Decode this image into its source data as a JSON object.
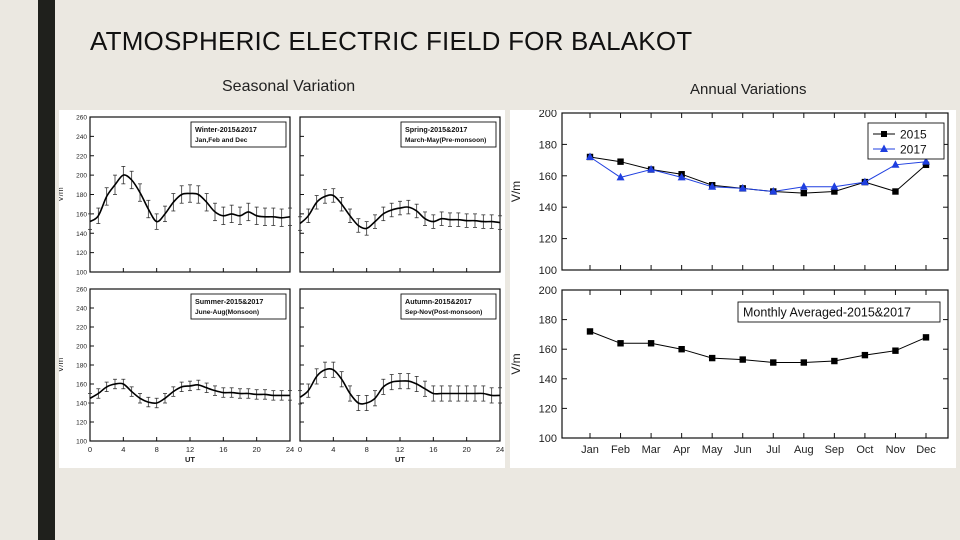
{
  "slide": {
    "title": "ATMOSPHERIC ELECTRIC FIELD FOR BALAKOT",
    "seasonal_heading": "Seasonal Variation",
    "annual_heading": "Annual Variations"
  },
  "colors": {
    "background": "#ebe8e1",
    "accent_bar": "#1f201c",
    "series_2015": "#000000",
    "series_2017": "#1f3fe0"
  },
  "chart_data": [
    {
      "type": "line",
      "panel": "winter",
      "legend": [
        "Winter-2015&2017",
        "Jan,Feb and Dec"
      ],
      "x": [
        0,
        1,
        2,
        3,
        4,
        5,
        6,
        7,
        8,
        9,
        10,
        11,
        12,
        13,
        14,
        15,
        16,
        17,
        18,
        19,
        20,
        21,
        22,
        23,
        24
      ],
      "y": [
        152,
        158,
        178,
        190,
        200,
        195,
        182,
        165,
        152,
        160,
        172,
        180,
        181,
        180,
        172,
        162,
        158,
        160,
        158,
        162,
        158,
        157,
        157,
        156,
        157
      ],
      "err": [
        8,
        8,
        9,
        10,
        9,
        9,
        9,
        9,
        8,
        8,
        9,
        9,
        9,
        9,
        9,
        9,
        9,
        9,
        9,
        9,
        9,
        9,
        9,
        9,
        9
      ],
      "xlim": [
        0,
        24
      ],
      "ylim": [
        100,
        260
      ],
      "xticks": [
        0,
        4,
        8,
        12,
        16,
        20,
        24
      ],
      "yticks": [
        100,
        120,
        140,
        160,
        180,
        200,
        220,
        240,
        260
      ],
      "ylabel": "V/m",
      "xlabel": ""
    },
    {
      "type": "line",
      "panel": "spring",
      "legend": [
        "Spring-2015&2017",
        "March-May(Pre-monsoon)"
      ],
      "x": [
        0,
        1,
        2,
        3,
        4,
        5,
        6,
        7,
        8,
        9,
        10,
        11,
        12,
        13,
        14,
        15,
        16,
        17,
        18,
        19,
        20,
        21,
        22,
        23,
        24
      ],
      "y": [
        150,
        158,
        172,
        178,
        179,
        170,
        158,
        148,
        145,
        152,
        160,
        164,
        166,
        167,
        163,
        155,
        152,
        155,
        154,
        154,
        153,
        153,
        152,
        152,
        151
      ],
      "err": [
        7,
        7,
        7,
        7,
        7,
        7,
        7,
        7,
        7,
        7,
        7,
        7,
        7,
        7,
        7,
        7,
        7,
        7,
        7,
        7,
        7,
        7,
        7,
        7,
        7
      ],
      "xlim": [
        0,
        24
      ],
      "ylim": [
        100,
        260
      ],
      "xticks": [
        0,
        4,
        8,
        12,
        16,
        20,
        24
      ],
      "yticks": [],
      "ylabel": "",
      "xlabel": ""
    },
    {
      "type": "line",
      "panel": "summer",
      "legend": [
        "Summer-2015&2017",
        "June-Aug(Monsoon)"
      ],
      "x": [
        0,
        1,
        2,
        3,
        4,
        5,
        6,
        7,
        8,
        9,
        10,
        11,
        12,
        13,
        14,
        15,
        16,
        17,
        18,
        19,
        20,
        21,
        22,
        23,
        24
      ],
      "y": [
        145,
        150,
        157,
        160,
        160,
        152,
        145,
        141,
        140,
        145,
        152,
        157,
        158,
        159,
        156,
        153,
        151,
        151,
        150,
        150,
        149,
        149,
        148,
        148,
        148
      ],
      "err": [
        5,
        5,
        5,
        5,
        5,
        5,
        5,
        5,
        5,
        5,
        5,
        5,
        5,
        5,
        5,
        5,
        5,
        5,
        5,
        5,
        5,
        5,
        5,
        5,
        5
      ],
      "xlim": [
        0,
        24
      ],
      "ylim": [
        100,
        260
      ],
      "xticks": [
        0,
        4,
        8,
        12,
        16,
        20,
        24
      ],
      "yticks": [
        100,
        120,
        140,
        160,
        180,
        200,
        220,
        240,
        260
      ],
      "ylabel": "V/m",
      "xlabel": "UT"
    },
    {
      "type": "line",
      "panel": "autumn",
      "legend": [
        "Autumn-2015&2017",
        "Sep-Nov(Post-monsoon)"
      ],
      "x": [
        0,
        1,
        2,
        3,
        4,
        5,
        6,
        7,
        8,
        9,
        10,
        11,
        12,
        13,
        14,
        15,
        16,
        17,
        18,
        19,
        20,
        21,
        22,
        23,
        24
      ],
      "y": [
        146,
        153,
        168,
        175,
        175,
        165,
        150,
        140,
        140,
        145,
        157,
        162,
        163,
        163,
        160,
        155,
        150,
        150,
        150,
        150,
        150,
        150,
        150,
        148,
        148
      ],
      "err": [
        7,
        7,
        8,
        8,
        8,
        8,
        8,
        8,
        8,
        8,
        8,
        8,
        8,
        8,
        8,
        8,
        8,
        8,
        8,
        8,
        8,
        8,
        8,
        8,
        8
      ],
      "xlim": [
        0,
        24
      ],
      "ylim": [
        100,
        260
      ],
      "xticks": [
        0,
        4,
        8,
        12,
        16,
        20,
        24
      ],
      "yticks": [],
      "ylabel": "",
      "xlabel": "UT"
    },
    {
      "type": "line",
      "panel": "annual-by-year",
      "categories": [
        "Jan",
        "Feb",
        "Mar",
        "Apr",
        "May",
        "Jun",
        "Jul",
        "Aug",
        "Sep",
        "Oct",
        "Nov",
        "Dec"
      ],
      "series": [
        {
          "name": "2015",
          "values": [
            172,
            169,
            164,
            161,
            154,
            152,
            150,
            149,
            150,
            156,
            150,
            167
          ]
        },
        {
          "name": "2017",
          "values": [
            172,
            159,
            164,
            159,
            153,
            152,
            150,
            153,
            153,
            156,
            167,
            169
          ]
        }
      ],
      "ylim": [
        100,
        200
      ],
      "yticks": [
        100,
        120,
        140,
        160,
        180,
        200
      ],
      "ylabel": "V/m",
      "legend_position": "top-right"
    },
    {
      "type": "line",
      "panel": "monthly-averaged",
      "categories": [
        "Jan",
        "Feb",
        "Mar",
        "Apr",
        "May",
        "Jun",
        "Jul",
        "Aug",
        "Sep",
        "Oct",
        "Nov",
        "Dec"
      ],
      "series": [
        {
          "name": "",
          "values": [
            172,
            164,
            164,
            160,
            154,
            153,
            151,
            151,
            152,
            156,
            159,
            168
          ]
        }
      ],
      "legend_box": "Monthly Averaged-2015&2017",
      "ylim": [
        100,
        200
      ],
      "yticks": [
        100,
        120,
        140,
        160,
        180,
        200
      ],
      "ylabel": "V/m",
      "legend_position": "top-right"
    }
  ]
}
